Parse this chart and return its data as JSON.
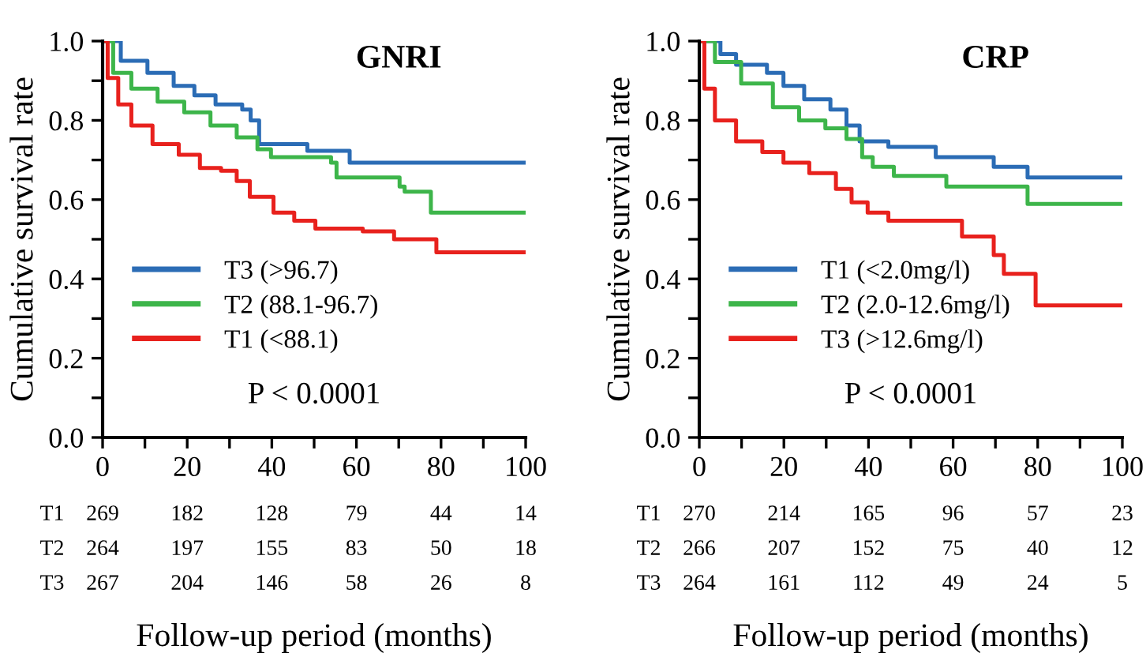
{
  "chart_data": [
    {
      "type": "step",
      "title": "GNRI",
      "ylabel": "Cumulative survival rate",
      "xlabel": "Follow-up period (months)",
      "xlim": [
        0,
        100
      ],
      "ylim": [
        0,
        1.0
      ],
      "xticks": [
        0,
        {
          "value": 10,
          "label": null
        },
        20,
        {
          "value": 30,
          "label": null
        },
        40,
        {
          "value": 50,
          "label": null
        },
        60,
        {
          "value": 70,
          "label": null
        },
        80,
        {
          "value": 90,
          "label": null
        },
        100
      ],
      "yticks": [
        {
          "value": 0,
          "label": "0.0"
        },
        {
          "value": 0.1,
          "label": null
        },
        {
          "value": 0.2,
          "label": "0.2"
        },
        {
          "value": 0.3,
          "label": null
        },
        {
          "value": 0.4,
          "label": "0.4"
        },
        {
          "value": 0.5,
          "label": null
        },
        {
          "value": 0.6,
          "label": "0.6"
        },
        {
          "value": 0.7,
          "label": null
        },
        {
          "value": 0.8,
          "label": "0.8"
        },
        {
          "value": 0.9,
          "label": null
        },
        {
          "value": 1.0,
          "label": "1.0"
        }
      ],
      "legend": "center left",
      "grid": false,
      "series": [
        {
          "name": "T3 (>96.7)",
          "color": "#2b6cb5",
          "x": [
            0,
            4.3,
            10.6,
            16.8,
            21.7,
            26.7,
            33,
            35,
            37,
            48.4,
            58.4,
            100
          ],
          "values": [
            1.0,
            0.95,
            0.92,
            0.887,
            0.863,
            0.84,
            0.827,
            0.8,
            0.74,
            0.723,
            0.693,
            0.693
          ]
        },
        {
          "name": "T2 (88.1-96.7)",
          "color": "#3db54a",
          "x": [
            0,
            2.5,
            6.8,
            13,
            19.3,
            25.5,
            31.7,
            36.6,
            39.8,
            54,
            55.3,
            70.2,
            71.4,
            77.6,
            100
          ],
          "values": [
            1.0,
            0.92,
            0.88,
            0.847,
            0.82,
            0.787,
            0.757,
            0.727,
            0.707,
            0.693,
            0.656,
            0.633,
            0.62,
            0.567,
            0.567
          ]
        },
        {
          "name": "T1 (<88.1)",
          "color": "#e8211d",
          "x": [
            0,
            1.2,
            3.7,
            6.8,
            11.8,
            18,
            23,
            28,
            31.7,
            34.8,
            40.4,
            45.3,
            50.3,
            61.5,
            68.9,
            78.9,
            100
          ],
          "values": [
            1.0,
            0.907,
            0.84,
            0.787,
            0.74,
            0.713,
            0.68,
            0.673,
            0.647,
            0.607,
            0.567,
            0.547,
            0.527,
            0.52,
            0.5,
            0.467,
            0.467
          ]
        }
      ],
      "annotations": [
        "P < 0.0001",
        "T1",
        "269",
        "182",
        "128",
        "79",
        "44",
        "14",
        "T2",
        "264",
        "197",
        "155",
        "83",
        "50",
        "18",
        "T3",
        "267",
        "204",
        "146",
        "58",
        "26",
        "8"
      ]
    },
    {
      "type": "step",
      "title": "CRP",
      "ylabel": "Cumulative survival rate",
      "xlabel": "Follow-up period (months)",
      "xlim": [
        0,
        100
      ],
      "ylim": [
        0,
        1.0
      ],
      "xticks": [
        0,
        {
          "value": 10,
          "label": null
        },
        20,
        {
          "value": 30,
          "label": null
        },
        40,
        {
          "value": 50,
          "label": null
        },
        60,
        {
          "value": 70,
          "label": null
        },
        80,
        {
          "value": 90,
          "label": null
        },
        100
      ],
      "yticks": [
        {
          "value": 0,
          "label": "0.0"
        },
        {
          "value": 0.1,
          "label": null
        },
        {
          "value": 0.2,
          "label": "0.2"
        },
        {
          "value": 0.3,
          "label": null
        },
        {
          "value": 0.4,
          "label": "0.4"
        },
        {
          "value": 0.5,
          "label": null
        },
        {
          "value": 0.6,
          "label": "0.6"
        },
        {
          "value": 0.7,
          "label": null
        },
        {
          "value": 0.8,
          "label": "0.8"
        },
        {
          "value": 0.9,
          "label": null
        },
        {
          "value": 1.0,
          "label": "1.0"
        }
      ],
      "legend": "center left",
      "grid": false,
      "series": [
        {
          "name": "T1 (<2.0mg/l)",
          "color": "#2b6cb5",
          "x": [
            0,
            5,
            8.7,
            16,
            19.9,
            24.8,
            31,
            34.8,
            37.9,
            44.7,
            55.9,
            69.6,
            77.6,
            100
          ],
          "values": [
            1.0,
            0.967,
            0.94,
            0.92,
            0.887,
            0.853,
            0.827,
            0.787,
            0.747,
            0.733,
            0.707,
            0.683,
            0.656,
            0.656
          ]
        },
        {
          "name": "T2 (2.0-12.6mg/l)",
          "color": "#3db54a",
          "x": [
            0,
            3.7,
            9.9,
            17.4,
            23.6,
            29.8,
            34.8,
            38.5,
            41,
            46,
            58.4,
            77.6,
            100
          ],
          "values": [
            1.0,
            0.947,
            0.893,
            0.833,
            0.8,
            0.78,
            0.753,
            0.707,
            0.683,
            0.66,
            0.633,
            0.589,
            0.589
          ]
        },
        {
          "name": "T3 (>12.6mg/l)",
          "color": "#e8211d",
          "x": [
            0,
            1.2,
            3.7,
            8.7,
            14.9,
            19.9,
            26,
            32.3,
            36,
            39.8,
            44.7,
            62.1,
            69.6,
            72,
            79.5,
            100
          ],
          "values": [
            1.0,
            0.88,
            0.8,
            0.747,
            0.72,
            0.693,
            0.667,
            0.627,
            0.593,
            0.567,
            0.547,
            0.507,
            0.46,
            0.413,
            0.333,
            0.333
          ]
        }
      ],
      "annotations": [
        "P < 0.0001",
        "T1",
        "270",
        "214",
        "165",
        "96",
        "57",
        "23",
        "T2",
        "266",
        "207",
        "152",
        "75",
        "40",
        "12",
        "T3",
        "264",
        "161",
        "112",
        "49",
        "24",
        "5"
      ]
    }
  ]
}
